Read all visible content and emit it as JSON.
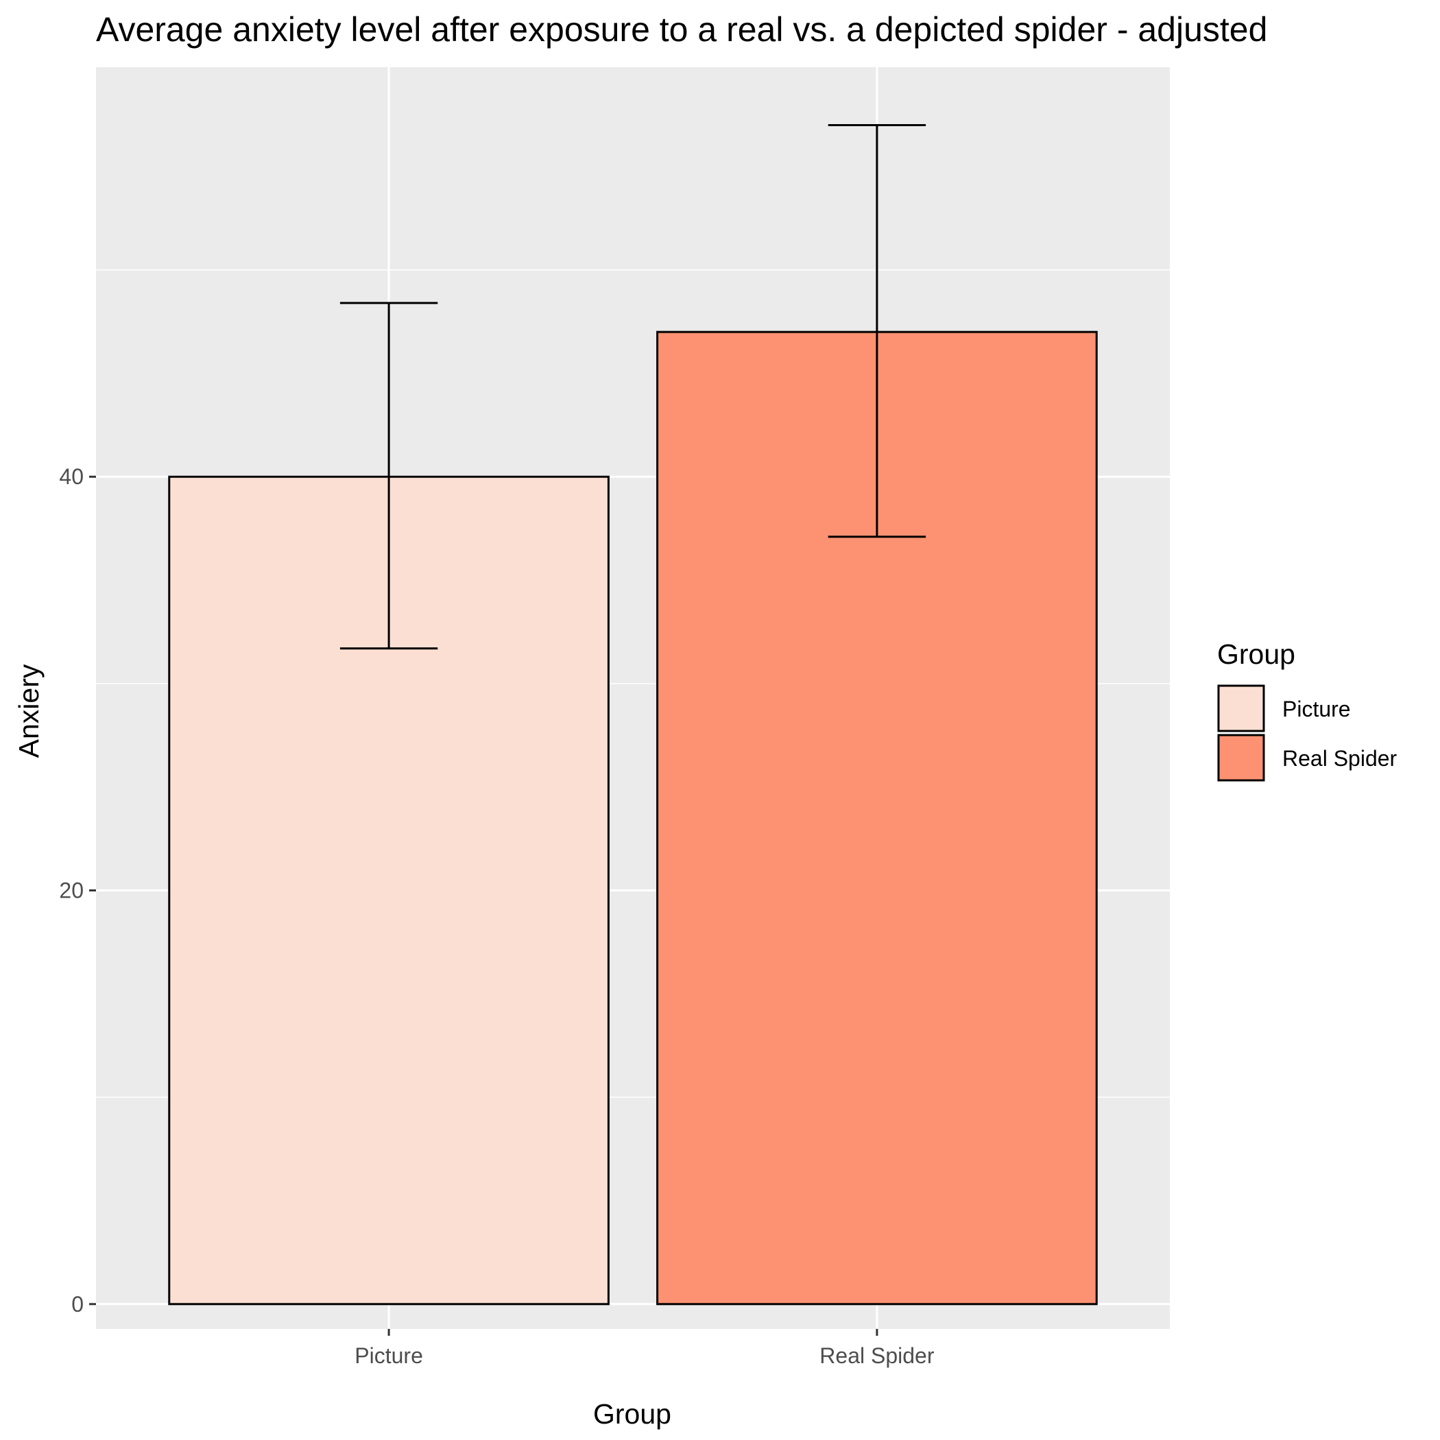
{
  "chart_data": {
    "type": "bar",
    "title": "Average anxiety level after exposure to a real vs. a depicted spider - adjusted",
    "xlabel": "Group",
    "ylabel": "Anxiery",
    "categories": [
      "Picture",
      "Real Spider"
    ],
    "values": [
      40,
      47
    ],
    "error_bars": [
      {
        "low": 31.7,
        "high": 48.4
      },
      {
        "low": 37.1,
        "high": 57.0
      }
    ],
    "colors": [
      "#FCDFD3",
      "#FC9272"
    ],
    "ylim": [
      -1.2,
      59.8
    ],
    "yticks": [
      0,
      20,
      40
    ],
    "grid": true,
    "legend": {
      "title": "Group",
      "position": "right",
      "items": [
        "Picture",
        "Real Spider"
      ]
    }
  }
}
